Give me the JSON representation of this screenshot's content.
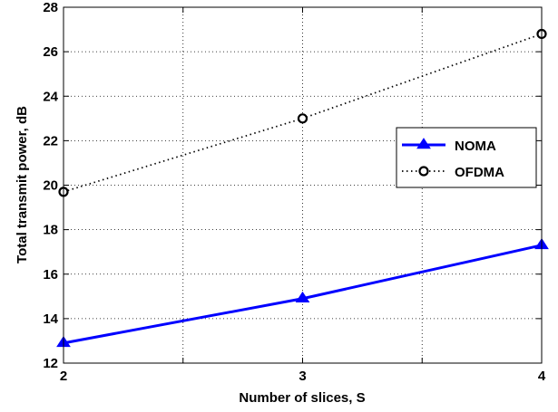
{
  "chart_data": {
    "type": "line",
    "title": "",
    "xlabel": "Number of slices, S",
    "ylabel": "Total transmit power, dB",
    "x": [
      2,
      3,
      4
    ],
    "xlim": [
      2,
      4
    ],
    "ylim": [
      12,
      28
    ],
    "xticks": [
      2,
      2.5,
      3,
      3.5,
      4
    ],
    "xtick_labels": [
      "2",
      "",
      "3",
      "",
      "4"
    ],
    "yticks": [
      12,
      14,
      16,
      18,
      20,
      22,
      24,
      26,
      28
    ],
    "ytick_labels": [
      "12",
      "14",
      "16",
      "18",
      "20",
      "22",
      "24",
      "26",
      "28"
    ],
    "grid": true,
    "legend_position": "right",
    "series": [
      {
        "name": "NOMA",
        "values": [
          12.9,
          14.9,
          17.3
        ],
        "color": "#0000ff",
        "line_style": "solid",
        "marker": "triangle"
      },
      {
        "name": "OFDMA",
        "values": [
          19.7,
          23.0,
          26.8
        ],
        "color": "#000000",
        "line_style": "dotted",
        "marker": "circle"
      }
    ]
  }
}
